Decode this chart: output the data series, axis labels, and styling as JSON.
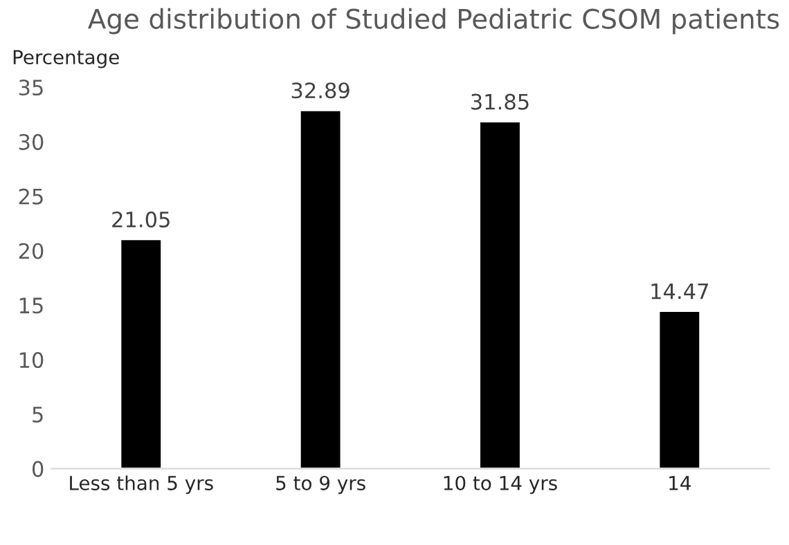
{
  "chart_data": {
    "type": "bar",
    "title": "Age distribution of Studied Pediatric CSOM patients",
    "ylabel": "Percentage",
    "categories": [
      "Less than 5 yrs",
      "5 to 9 yrs",
      "10 to 14 yrs",
      "14"
    ],
    "values": [
      21.05,
      32.89,
      31.85,
      14.47
    ],
    "color": "#000000",
    "ylim": [
      0,
      35
    ],
    "yticks": [
      0,
      5,
      10,
      15,
      20,
      25,
      30,
      35
    ],
    "grid": false,
    "data_labels": true
  }
}
